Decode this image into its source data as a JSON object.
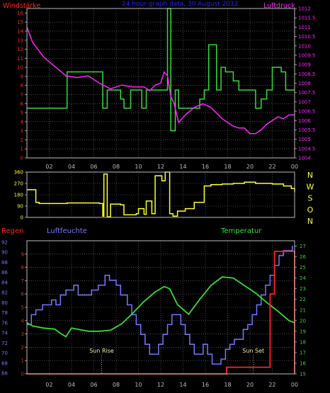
{
  "title": "24 hour graph data, 30 August 2012",
  "colors": {
    "background": "#000000",
    "frame": "#bbbbbb",
    "grid": "#777777",
    "wind_speed": "#33dd33",
    "pressure": "#ff22ff",
    "wind_dir": "#ffff33",
    "rain": "#ff2222",
    "humidity": "#7777ff",
    "temperature": "#33dd33",
    "title": "#2222ff"
  },
  "x_ticks": [
    "02",
    "04",
    "06",
    "08",
    "10",
    "12",
    "14",
    "16",
    "18",
    "20",
    "22",
    "00"
  ],
  "chart_data": [
    {
      "type": "line",
      "name": "wind-and-pressure",
      "left_label": "Windstärke",
      "right_label": "Luftdruck",
      "x_range": [
        0,
        24
      ],
      "left_ylim": [
        0,
        16.5
      ],
      "left_ticks": [
        "0",
        "1",
        "2",
        "3",
        "4",
        "5",
        "6",
        "7",
        "8",
        "9",
        "10",
        "11",
        "12",
        "13",
        "14",
        "15",
        "16"
      ],
      "right_ylim": [
        1004,
        1012
      ],
      "right_ticks": [
        "1004",
        "1004.5",
        "1005",
        "1005.5",
        "1006",
        "1006.5",
        "1007",
        "1007.5",
        "1008",
        "1008.5",
        "1009",
        "1009.5",
        "1010",
        "1010.5",
        "1011",
        "1011.5",
        "1012"
      ],
      "series": [
        {
          "axis": "left",
          "step": true,
          "x": [
            0,
            3.6,
            6.8,
            7.2,
            8.4,
            8.7,
            9.3,
            10.3,
            10.7,
            12.6,
            12.9,
            13.3,
            13.6,
            15.5,
            15.9,
            16.3,
            17.0,
            17.4,
            17.8,
            18.5,
            19.0,
            20.5,
            21.0,
            21.5,
            22.0,
            22.8,
            23.2,
            24.0
          ],
          "y": [
            5.5,
            9.5,
            5.5,
            7.5,
            6.5,
            5.5,
            7.5,
            5.5,
            7.5,
            17,
            3,
            7.5,
            5.5,
            6.5,
            7.5,
            12.5,
            7.5,
            10,
            9.5,
            8.5,
            7.5,
            5.5,
            6.5,
            7.5,
            10,
            9.5,
            7.5,
            7.5
          ]
        },
        {
          "axis": "right",
          "step": false,
          "x": [
            0,
            0.5,
            1.5,
            2.5,
            3.5,
            4.5,
            5.5,
            6.5,
            7.5,
            8.5,
            9.5,
            10.5,
            11.0,
            11.5,
            12.0,
            12.3,
            12.6,
            12.9,
            13.2,
            13.6,
            14.2,
            15.0,
            15.8,
            16.5,
            17.0,
            17.5,
            18.0,
            18.5,
            19.0,
            19.5,
            20.0,
            20.5,
            21.0,
            21.5,
            22.0,
            22.5,
            23.0,
            23.5,
            24.0
          ],
          "y": [
            1011,
            1010.2,
            1009.4,
            1008.9,
            1008.4,
            1008.3,
            1008.4,
            1008.0,
            1007.7,
            1007.9,
            1007.8,
            1007.8,
            1007.6,
            1007.9,
            1008.0,
            1008.6,
            1008.4,
            1007.3,
            1006.9,
            1005.9,
            1006.3,
            1006.7,
            1006.9,
            1006.7,
            1006.4,
            1006.1,
            1005.9,
            1005.7,
            1005.6,
            1005.6,
            1005.3,
            1005.3,
            1005.5,
            1005.8,
            1006.0,
            1006.2,
            1006.1,
            1006.3,
            1006.3
          ]
        }
      ]
    },
    {
      "type": "line",
      "name": "wind-direction",
      "x_range": [
        0,
        24
      ],
      "ylim": [
        0,
        360
      ],
      "left_ticks": [
        "0",
        "90",
        "180",
        "270",
        "360"
      ],
      "right_labels": [
        "N",
        "W",
        "S",
        "O",
        "N"
      ],
      "series": [
        {
          "step": true,
          "x": [
            0,
            0.8,
            1.1,
            3.0,
            3.6,
            6.5,
            6.8,
            6.9,
            7.2,
            7.5,
            8.4,
            8.7,
            9.8,
            10.0,
            10.5,
            10.7,
            11.2,
            11.5,
            12.1,
            12.4,
            12.8,
            13.1,
            13.5,
            14.2,
            15.0,
            15.9,
            16.5,
            17.5,
            18.5,
            19.5,
            20.5,
            22.0,
            23.0,
            23.7,
            24.0
          ],
          "y": [
            220,
            120,
            110,
            110,
            115,
            110,
            10,
            345,
            5,
            105,
            100,
            20,
            30,
            70,
            25,
            130,
            30,
            330,
            290,
            360,
            30,
            10,
            50,
            70,
            120,
            250,
            260,
            265,
            270,
            280,
            270,
            265,
            250,
            230,
            200
          ]
        }
      ]
    },
    {
      "type": "line",
      "name": "rain-humidity-temperature",
      "left_label": "Regen",
      "humidity_label": "Luftfeuchte",
      "right_label": "Temperatur",
      "x_range": [
        0,
        24
      ],
      "rain_ylim": [
        0,
        10
      ],
      "rain_ticks": [
        "0",
        "1",
        "2",
        "3",
        "4",
        "5",
        "6",
        "7",
        "8",
        "9"
      ],
      "humidity_ylim": [
        66,
        93
      ],
      "humidity_ticks": [
        "66",
        "68",
        "70",
        "72",
        "74",
        "76",
        "78",
        "80",
        "82",
        "84",
        "86",
        "88",
        "90",
        "92"
      ],
      "temp_ylim": [
        15,
        27.5
      ],
      "temp_ticks": [
        "15",
        "16",
        "17",
        "18",
        "19",
        "20",
        "21",
        "22",
        "23",
        "24",
        "25",
        "26",
        "27"
      ],
      "annotations": [
        {
          "label": "Sun Rise",
          "x": 6.7
        },
        {
          "label": "Sun Set",
          "x": 20.3
        }
      ],
      "series": [
        {
          "axis": "rain",
          "step": true,
          "x": [
            0,
            17.9,
            20.5,
            21.3,
            21.8,
            22.2,
            23.2,
            24.0
          ],
          "y": [
            0,
            0.5,
            0.5,
            0.5,
            6.0,
            9.2,
            9.2,
            0
          ]
        },
        {
          "axis": "humidity",
          "step": true,
          "x": [
            0,
            0.4,
            0.8,
            1.4,
            2.2,
            2.6,
            3.0,
            3.5,
            4.2,
            4.6,
            5.3,
            5.8,
            6.4,
            7.0,
            7.4,
            8.0,
            8.4,
            9.0,
            9.4,
            9.8,
            10.2,
            10.6,
            11.0,
            11.4,
            11.8,
            12.2,
            12.6,
            13.0,
            13.4,
            13.8,
            14.2,
            14.6,
            15.0,
            15.4,
            15.8,
            16.2,
            16.6,
            17.0,
            17.4,
            17.8,
            18.2,
            18.6,
            19.0,
            19.4,
            19.8,
            20.2,
            20.6,
            21.0,
            21.4,
            21.8,
            22.2,
            22.6,
            23.0,
            23.4,
            23.8
          ],
          "y": [
            76,
            78,
            79,
            80,
            81,
            80,
            82,
            83,
            84,
            82,
            82,
            83,
            84,
            86,
            85,
            84,
            82,
            80,
            78,
            76,
            74,
            72,
            70,
            70,
            72,
            74,
            76,
            78,
            78,
            76,
            74,
            72,
            70,
            70,
            72,
            70,
            68,
            68,
            69,
            71,
            72,
            73,
            73,
            75,
            76,
            78,
            80,
            82,
            84,
            86,
            88,
            90,
            91,
            91,
            92
          ]
        },
        {
          "axis": "temperature",
          "step": false,
          "x": [
            0,
            0.5,
            1.5,
            2.5,
            3.0,
            3.5,
            4.0,
            4.5,
            5.5,
            6.5,
            7.5,
            8.5,
            9.5,
            10.5,
            11.5,
            12.3,
            12.8,
            13.5,
            14.5,
            15.5,
            16.5,
            17.5,
            18.5,
            19.5,
            20.5,
            21.5,
            22.5,
            23.5,
            24.0
          ],
          "y": [
            19.8,
            19.5,
            19.3,
            19.2,
            18.8,
            18.5,
            19.3,
            19.2,
            19.0,
            19.0,
            19.1,
            19.7,
            20.7,
            21.8,
            22.7,
            23.2,
            23.0,
            21.5,
            20.6,
            22.0,
            23.3,
            24.1,
            24.0,
            23.3,
            22.6,
            21.7,
            20.9,
            20.0,
            19.8
          ]
        }
      ]
    }
  ]
}
